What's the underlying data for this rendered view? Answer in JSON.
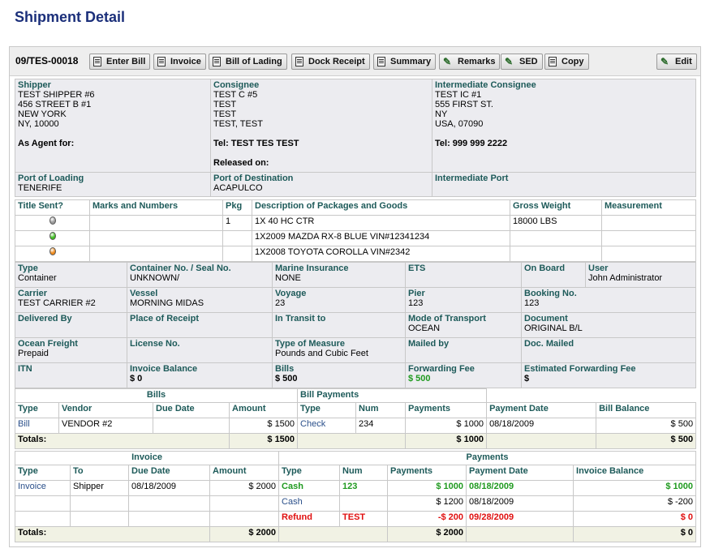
{
  "page_title": "Shipment  Detail",
  "toolbar": {
    "shipment_id": "09/TES-00018",
    "buttons": [
      "Enter Bill",
      "Invoice",
      "Bill of Lading",
      "Dock Receipt",
      "Summary",
      "Remarks",
      "SED",
      "Copy"
    ],
    "edit_label": "Edit"
  },
  "parties": {
    "shipper_label": "Shipper",
    "shipper_lines": [
      "TEST SHIPPER #6",
      "456 STREET B #1",
      "NEW YORK",
      "NY, 10000"
    ],
    "as_agent_label": "As Agent for:",
    "consignee_label": "Consignee",
    "consignee_lines": [
      "TEST C #5",
      "TEST",
      "TEST",
      "TEST, TEST"
    ],
    "consignee_tel": "Tel: TEST TES TEST",
    "released_on_label": "Released on:",
    "intermediate_label": "Intermediate Consignee",
    "intermediate_lines": [
      "TEST IC #1",
      "555 FIRST ST.",
      "NY",
      "USA, 07090"
    ],
    "intermediate_tel": "Tel: 999 999 2222"
  },
  "ports": {
    "loading_label": "Port of Loading",
    "loading": "TENERIFE",
    "destination_label": "Port of Destination",
    "destination": "ACAPULCO",
    "intermediate_label": "Intermediate Port",
    "intermediate": ""
  },
  "goods": {
    "headers": [
      "Title Sent?",
      "Marks and Numbers",
      "Pkg",
      "Description of Packages and Goods",
      "Gross Weight",
      "Measurement"
    ],
    "rows": [
      {
        "status_color": "#9a9a9a",
        "marks": "",
        "pkg": "1",
        "description": "1X 40 HC CTR",
        "weight": "18000 LBS",
        "measurement": ""
      },
      {
        "status_color": "#3fbf1f",
        "marks": "",
        "pkg": "",
        "description": "1X2009 MAZDA RX-8 BLUE VIN#12341234",
        "weight": "",
        "measurement": ""
      },
      {
        "status_color": "#f08a1a",
        "marks": "",
        "pkg": "",
        "description": "1X2008 TOYOTA COROLLA VIN#2342",
        "weight": "",
        "measurement": ""
      }
    ]
  },
  "details": {
    "type_label": "Type",
    "type": "Container",
    "container_label": "Container No. / Seal No.",
    "container": "UNKNOWN/",
    "marine_label": "Marine Insurance",
    "marine": "NONE",
    "ets_label": "ETS",
    "ets": "",
    "onboard_label": "On Board",
    "onboard": "",
    "user_label": "User",
    "user": "John Administrator",
    "carrier_label": "Carrier",
    "carrier": "TEST CARRIER #2",
    "vessel_label": "Vessel",
    "vessel": "MORNING MIDAS",
    "voyage_label": "Voyage",
    "voyage": "23",
    "pier_label": "Pier",
    "pier": "123",
    "booking_label": "Booking No.",
    "booking": "123",
    "delivered_label": "Delivered By",
    "delivered": "",
    "receipt_label": "Place of Receipt",
    "receipt": "",
    "transit_label": "In Transit to",
    "transit": "",
    "mode_label": "Mode of Transport",
    "mode": "OCEAN",
    "document_label": "Document",
    "document": "ORIGINAL B/L",
    "freight_label": "Ocean Freight",
    "freight": "Prepaid",
    "license_label": "License No.",
    "license": "",
    "measure_label": "Type of Measure",
    "measure": "Pounds and Cubic Feet",
    "mailed_label": "Mailed by",
    "mailed": "",
    "docmailed_label": "Doc. Mailed",
    "docmailed": "",
    "itn_label": "ITN",
    "itn": "",
    "inv_balance_label": "Invoice Balance",
    "inv_balance": "$ 0",
    "bills_label": "Bills",
    "bills": "$ 500",
    "fwd_fee_label": "Forwarding Fee",
    "fwd_fee": "$ 500",
    "est_fwd_label": "Estimated Forwarding Fee",
    "est_fwd": "$"
  },
  "bills_section": {
    "bills_title": "Bills",
    "payments_title": "Bill Payments",
    "headers": [
      "Type",
      "Vendor",
      "Due Date",
      "Amount",
      "Type",
      "Num",
      "Payments",
      "Payment Date",
      "Bill Balance"
    ],
    "row": {
      "type": "Bill",
      "vendor": "VENDOR #2",
      "due": "",
      "amount": "$ 1500",
      "ptype": "Check",
      "num": "234",
      "payments": "$ 1000",
      "pdate": "08/18/2009",
      "balance": "$ 500"
    },
    "totals_label": "Totals:",
    "totals": {
      "amount": "$ 1500",
      "payments": "$ 1000",
      "balance": "$ 500"
    }
  },
  "invoice_section": {
    "invoice_title": "Invoice",
    "payments_title": "Payments",
    "headers": [
      "Type",
      "To",
      "Due Date",
      "Amount",
      "Type",
      "Num",
      "Payments",
      "Payment Date",
      "Invoice Balance"
    ],
    "invoice_row": {
      "type": "Invoice",
      "to": "Shipper",
      "due": "08/18/2009",
      "amount": "$ 2000"
    },
    "payments": [
      {
        "type": "Cash",
        "num": "123",
        "amount": "$ 1000",
        "date": "08/18/2009",
        "balance": "$ 1000",
        "style": "green"
      },
      {
        "type": "Cash",
        "num": "",
        "amount": "$ 1200",
        "date": "08/18/2009",
        "balance": "$ -200",
        "style": "normal"
      },
      {
        "type": "Refund",
        "num": "TEST",
        "amount": "-$ 200",
        "date": "09/28/2009",
        "balance": "$ 0",
        "style": "red"
      }
    ],
    "totals_label": "Totals:",
    "totals": {
      "amount": "$ 2000",
      "payments": "$ 2000",
      "balance": "$ 0"
    }
  }
}
